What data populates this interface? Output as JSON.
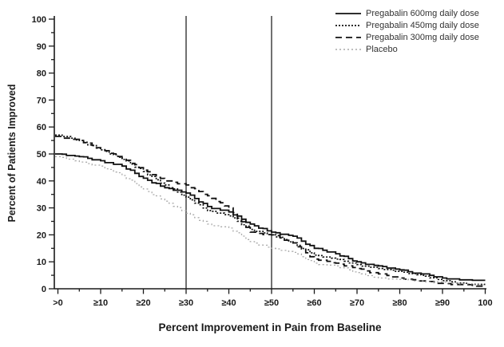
{
  "chart_data": {
    "type": "line",
    "subtype": "step",
    "title": "",
    "xlabel": "Percent Improvement in Pain from Baseline",
    "ylabel": "Percent of Patients Improved",
    "xlim": [
      0,
      100
    ],
    "ylim": [
      0,
      100
    ],
    "grid": false,
    "legend_position": "top-right",
    "x_tick_values": [
      0,
      10,
      20,
      30,
      40,
      50,
      60,
      70,
      80,
      90,
      100
    ],
    "x_tick_labels": [
      ">0",
      "≥10",
      "≥20",
      "≥30",
      "≥40",
      "≥50",
      "≥60",
      "≥70",
      "≥80",
      "≥90",
      "100"
    ],
    "y_tick_values": [
      0,
      10,
      20,
      30,
      40,
      50,
      60,
      70,
      80,
      90,
      100
    ],
    "minor_tick_step": 5,
    "reference_lines_x": [
      30,
      50
    ],
    "x_sample": [
      0,
      5,
      10,
      15,
      20,
      25,
      30,
      35,
      40,
      45,
      50,
      55,
      60,
      65,
      70,
      75,
      80,
      85,
      90,
      95,
      100
    ],
    "series": [
      {
        "name": "Pregabalin 600mg daily dose",
        "style": "solid",
        "color": "#111111",
        "width": 1.8,
        "values": [
          50,
          49,
          47.5,
          45.5,
          41,
          37.5,
          35.5,
          30.5,
          28.5,
          24,
          21,
          19.5,
          15,
          13,
          10,
          8.5,
          7,
          5.5,
          4,
          3.5,
          3.5
        ]
      },
      {
        "name": "Pregabalin 450mg daily dose",
        "style": "dense-dotted",
        "color": "#111111",
        "width": 1.7,
        "values": [
          57,
          55,
          51.5,
          48,
          43.5,
          38.5,
          34,
          29,
          27,
          22,
          20,
          17,
          12.5,
          11,
          9,
          7.5,
          6.5,
          5,
          3,
          2,
          1.8
        ]
      },
      {
        "name": "Pregabalin 300mg daily dose",
        "style": "dashed",
        "color": "#111111",
        "width": 1.8,
        "values": [
          56.5,
          55,
          52,
          48.5,
          44,
          40,
          38.5,
          34.5,
          30,
          21,
          20,
          17,
          11,
          9.5,
          7.5,
          5.5,
          4,
          3,
          2,
          1.5,
          1.2
        ]
      },
      {
        "name": "Placebo",
        "style": "dotted",
        "color": "#a9a9a9",
        "width": 1.3,
        "values": [
          49,
          47,
          45.5,
          42,
          37,
          32.5,
          28,
          24,
          22.5,
          17.5,
          15,
          13.5,
          9.5,
          8.5,
          6,
          4,
          3.5,
          3,
          2.5,
          2,
          1.5
        ]
      }
    ],
    "colors": {
      "axis": "#1a1a1a",
      "reference_line": "#4d4d4d",
      "text": "#1a1a1a",
      "legend_text": "#333333",
      "background": "#ffffff"
    }
  }
}
